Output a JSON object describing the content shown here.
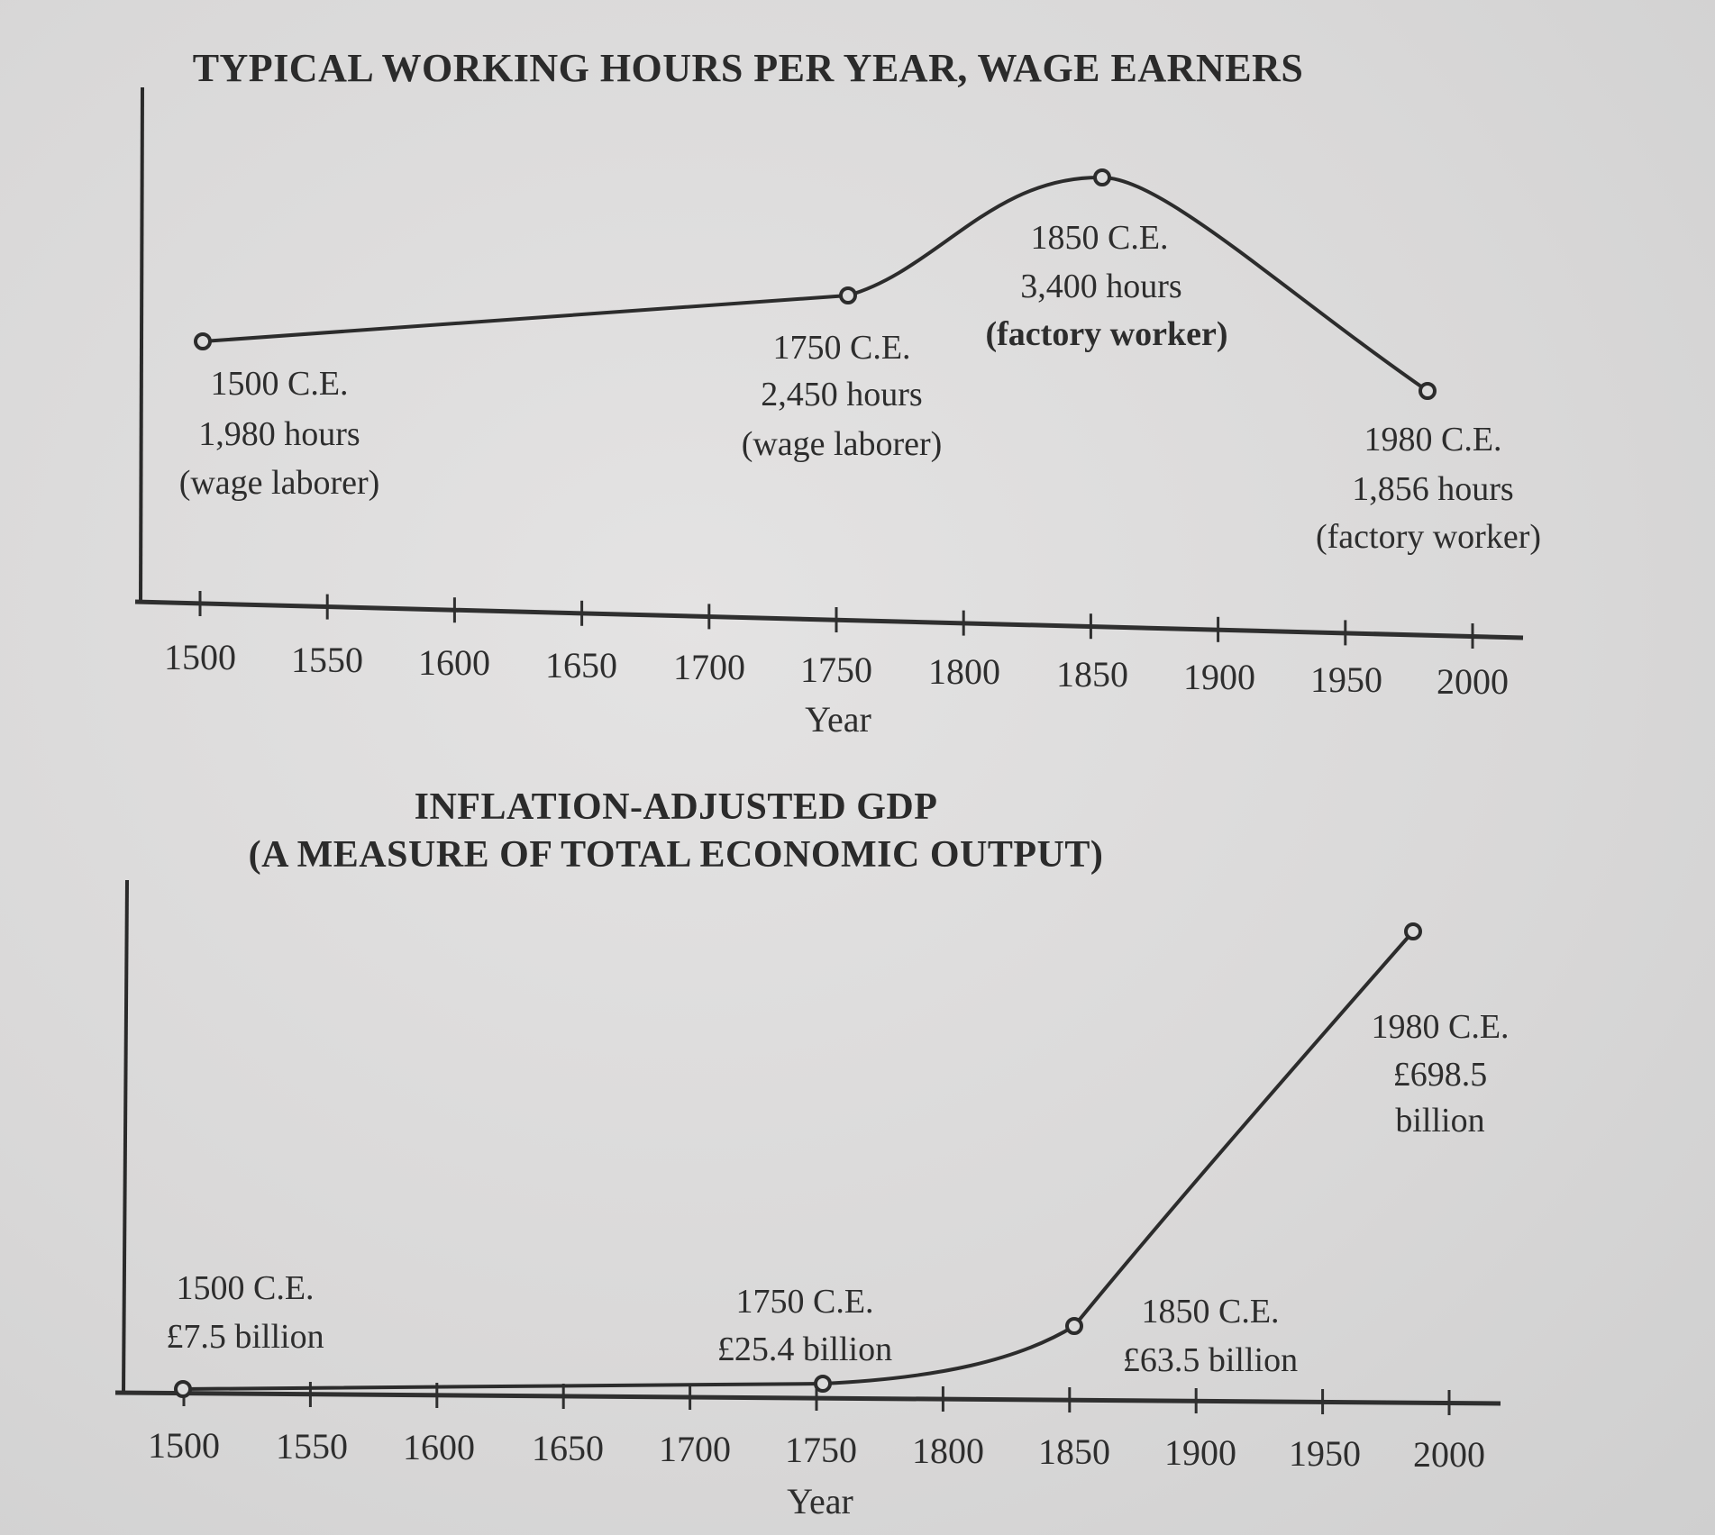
{
  "chart_data": [
    {
      "type": "line",
      "title": "TYPICAL WORKING HOURS PER YEAR, WAGE EARNERS",
      "xlabel": "Year",
      "ylabel": "",
      "x_ticks": [
        "1500",
        "1550",
        "1600",
        "1650",
        "1700",
        "1750",
        "1800",
        "1850",
        "1900",
        "1950",
        "2000"
      ],
      "xlim": [
        1500,
        2000
      ],
      "grid": false,
      "series": [
        {
          "name": "Working hours per year",
          "x": [
            1500,
            1750,
            1850,
            1980
          ],
          "values": [
            1980,
            2450,
            3400,
            1856
          ]
        }
      ],
      "annotations": [
        {
          "year_label": "1500 C.E.",
          "value_label": "1,980 hours",
          "note": "(wage laborer)"
        },
        {
          "year_label": "1750 C.E.",
          "value_label": "2,450 hours",
          "note": "(wage laborer)"
        },
        {
          "year_label": "1850 C.E.",
          "value_label": "3,400 hours",
          "note": "(factory worker)"
        },
        {
          "year_label": "1980 C.E.",
          "value_label": "1,856 hours",
          "note": "(factory worker)"
        }
      ]
    },
    {
      "type": "line",
      "title": "INFLATION-ADJUSTED GDP",
      "subtitle": "(A MEASURE OF TOTAL ECONOMIC OUTPUT)",
      "xlabel": "Year",
      "ylabel": "",
      "x_ticks": [
        "1500",
        "1550",
        "1600",
        "1650",
        "1700",
        "1750",
        "1800",
        "1850",
        "1900",
        "1950",
        "2000"
      ],
      "xlim": [
        1500,
        2000
      ],
      "grid": false,
      "series": [
        {
          "name": "Inflation-adjusted GDP (£ billion)",
          "x": [
            1500,
            1750,
            1850,
            1980
          ],
          "values": [
            7.5,
            25.4,
            63.5,
            698.5
          ]
        }
      ],
      "annotations": [
        {
          "year_label": "1500 C.E.",
          "value_label": "£7.5 billion"
        },
        {
          "year_label": "1750 C.E.",
          "value_label": "£25.4 billion"
        },
        {
          "year_label": "1850 C.E.",
          "value_label": "£63.5 billion"
        },
        {
          "year_label": "1980 C.E.",
          "value_label": "£698.5",
          "value_label_2": "billion"
        }
      ]
    }
  ],
  "colors": {
    "paper": "#dcdcdc",
    "ink": "#2a2a2a"
  }
}
